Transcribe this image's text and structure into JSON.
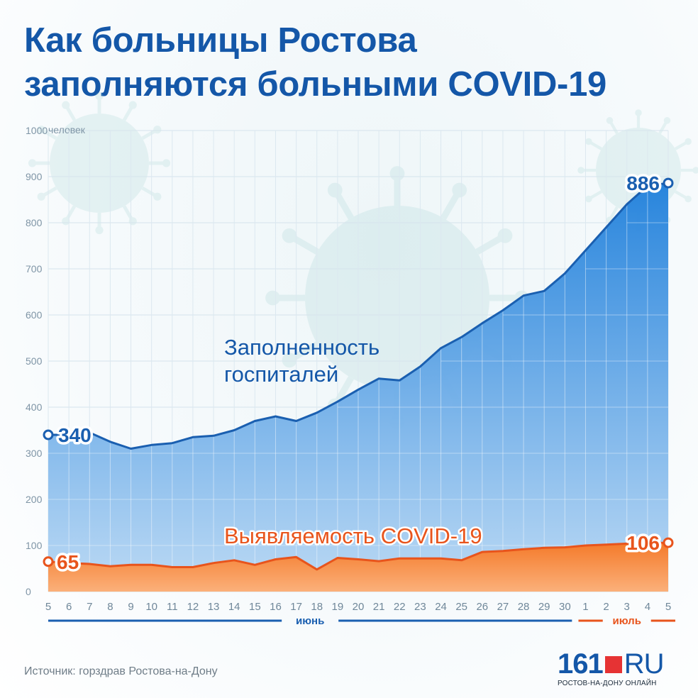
{
  "title_lines": [
    "Как больницы Ростова",
    "заполняются больными COVID-19"
  ],
  "source": "Источник: горздрав Ростова-на-Дону",
  "logo": {
    "main": "161",
    "ru": "RU",
    "sub": "РОСТОВ-НА-ДОНУ ОНЛАЙН"
  },
  "colors": {
    "title": "#1457a8",
    "occupancy_line": "#1a5fb0",
    "occupancy_fill_top": "#1e7fdb",
    "occupancy_fill_bottom": "#b9d8f4",
    "detection_line": "#e8541c",
    "detection_fill": "#f47a2a",
    "june_bar": "#1a5fb0",
    "july_bar": "#e8541c"
  },
  "chart_data": {
    "type": "area",
    "y_unit": "человек",
    "ylim": [
      0,
      1000
    ],
    "yticks": [
      0,
      100,
      200,
      300,
      400,
      500,
      600,
      700,
      800,
      900,
      1000
    ],
    "grid": true,
    "x": [
      "5",
      "6",
      "7",
      "8",
      "9",
      "10",
      "11",
      "12",
      "13",
      "14",
      "15",
      "16",
      "17",
      "18",
      "19",
      "20",
      "21",
      "22",
      "23",
      "24",
      "25",
      "26",
      "27",
      "28",
      "29",
      "30",
      "1",
      "2",
      "3",
      "4",
      "5"
    ],
    "months": [
      {
        "label": "июнь",
        "from_index": 0,
        "to_index": 25
      },
      {
        "label": "июль",
        "from_index": 26,
        "to_index": 30
      }
    ],
    "series": [
      {
        "name": "Заполненность госпиталей",
        "label_lines": [
          "Заполненность",
          "госпиталей"
        ],
        "values": [
          340,
          340,
          345,
          325,
          310,
          318,
          322,
          335,
          338,
          350,
          370,
          380,
          370,
          388,
          412,
          438,
          462,
          458,
          488,
          528,
          552,
          582,
          610,
          642,
          652,
          690,
          740,
          790,
          840,
          880,
          886
        ],
        "start_label": "340",
        "end_label": "886"
      },
      {
        "name": "Выявляемость COVID-19",
        "label_lines": [
          "Выявляемость COVID-19"
        ],
        "values": [
          65,
          62,
          60,
          55,
          58,
          58,
          53,
          53,
          62,
          68,
          58,
          70,
          75,
          48,
          73,
          70,
          66,
          72,
          72,
          72,
          68,
          86,
          88,
          92,
          95,
          96,
          100,
          102,
          104,
          105,
          106
        ],
        "start_label": "65",
        "end_label": "106"
      }
    ]
  }
}
